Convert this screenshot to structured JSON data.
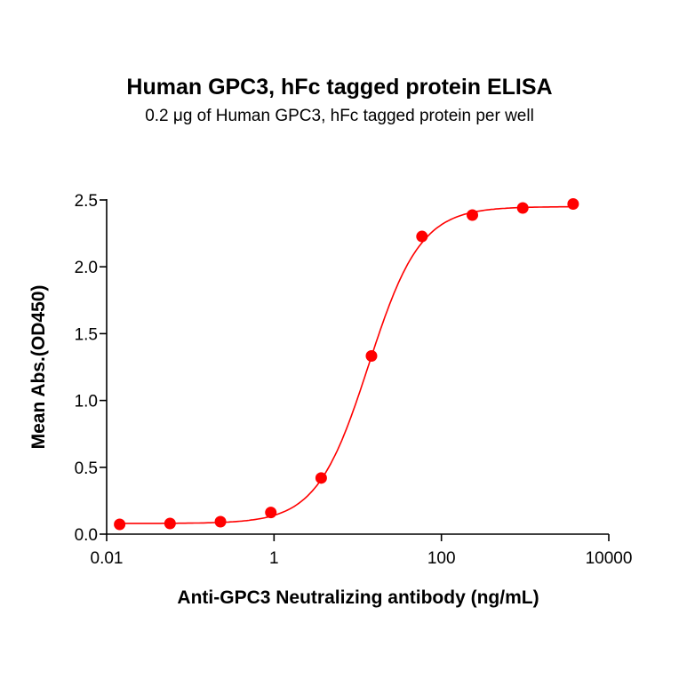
{
  "chart_data": {
    "type": "scatter",
    "title": "Human GPC3, hFc tagged protein ELISA",
    "subtitle": "0.2 μg of Human GPC3, hFc tagged protein per well",
    "xlabel": "Anti-GPC3 Neutralizing antibody (ng/mL)",
    "ylabel": "Mean Abs.(OD450)",
    "xscale": "log",
    "xlim": [
      0.01,
      10000
    ],
    "ylim": [
      0,
      2.5
    ],
    "xticks": [
      "0.01",
      "1",
      "100",
      "10000"
    ],
    "yticks": [
      "0.0",
      "0.5",
      "1.0",
      "1.5",
      "2.0",
      "2.5"
    ],
    "grid": false,
    "fit_curve": "sigmoidal",
    "color": "#ff0000",
    "x": [
      0.0143,
      0.0572,
      0.229,
      0.916,
      3.66,
      14.6,
      58.6,
      234.4,
      937.5,
      3750
    ],
    "y": [
      0.073,
      0.08,
      0.093,
      0.162,
      0.42,
      1.333,
      2.227,
      2.387,
      2.44,
      2.47
    ]
  }
}
